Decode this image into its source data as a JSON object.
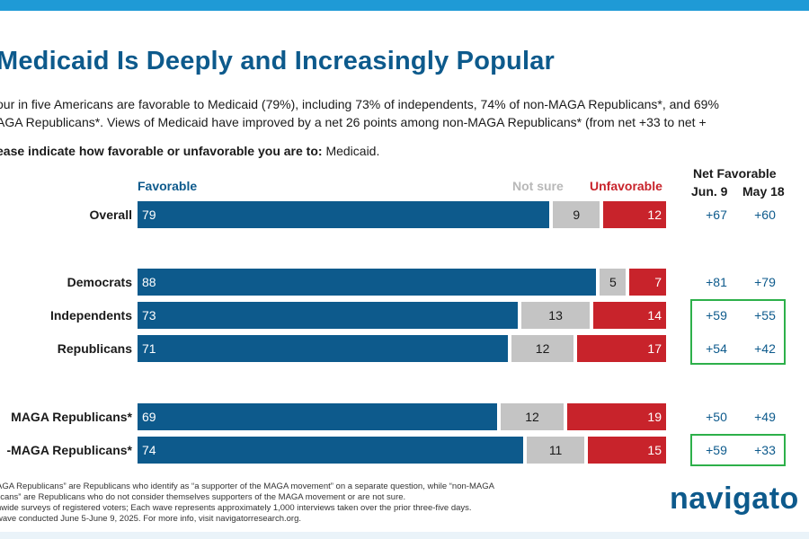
{
  "title": "Medicaid Is Deeply and Increasingly Popular",
  "subtitle_lines": [
    "our in five Americans are favorable to Medicaid (79%), including 73% of independents, 74% of non-MAGA Republicans*, and 69%",
    "AGA Republicans*. Views of Medicaid have improved by a net 26 points among non-MAGA Republicans* (from net +33 to net +"
  ],
  "question": {
    "prompt": "ease indicate how favorable or unfavorable you are to:",
    "subject": "Medicaid."
  },
  "colors": {
    "favorable": "#0d5a8c",
    "not_sure": "#c4c4c4",
    "unfavorable": "#c8232b",
    "highlight": "#2db04a",
    "accent_bar": "#1f9ad6"
  },
  "chart_data": {
    "type": "bar",
    "orientation": "horizontal",
    "stacked": true,
    "title": "Medicaid Is Deeply and Increasingly Popular",
    "categories": [
      "Overall",
      "Democrats",
      "Independents",
      "Republicans",
      "MAGA Republicans*",
      "-MAGA Republicans*"
    ],
    "legend": [
      "Favorable",
      "Not sure",
      "Unfavorable"
    ],
    "series": [
      {
        "name": "Favorable",
        "values": [
          79,
          88,
          73,
          71,
          69,
          74
        ]
      },
      {
        "name": "Not sure",
        "values": [
          9,
          5,
          13,
          12,
          12,
          11
        ]
      },
      {
        "name": "Unfavorable",
        "values": [
          12,
          7,
          14,
          17,
          19,
          15
        ]
      }
    ],
    "net_favorable": {
      "header": "Net Favorable",
      "columns": [
        "Jun. 9",
        "May 18"
      ],
      "jun9": [
        "+67",
        "+81",
        "+59",
        "+54",
        "+50",
        "+59"
      ],
      "may18": [
        "+60",
        "+79",
        "+55",
        "+42",
        "+49",
        "+33"
      ]
    },
    "highlighted_groups": [
      [
        2,
        3
      ],
      [
        5
      ]
    ]
  },
  "footnotes": [
    "AGA Republicans” are Republicans who identify as “a supporter of the MAGA movement” on a separate question, while “non-MAGA",
    "licans” are Republicans who do not consider themselves supporters of the MAGA movement or are not sure.",
    "nwide surveys of registered voters; Each wave represents approximately 1,000 interviews taken over the prior three-five days.",
    " wave conducted June 5-June 9, 2025. For more info, visit navigatorresearch.org."
  ],
  "logo_text": "navigato"
}
